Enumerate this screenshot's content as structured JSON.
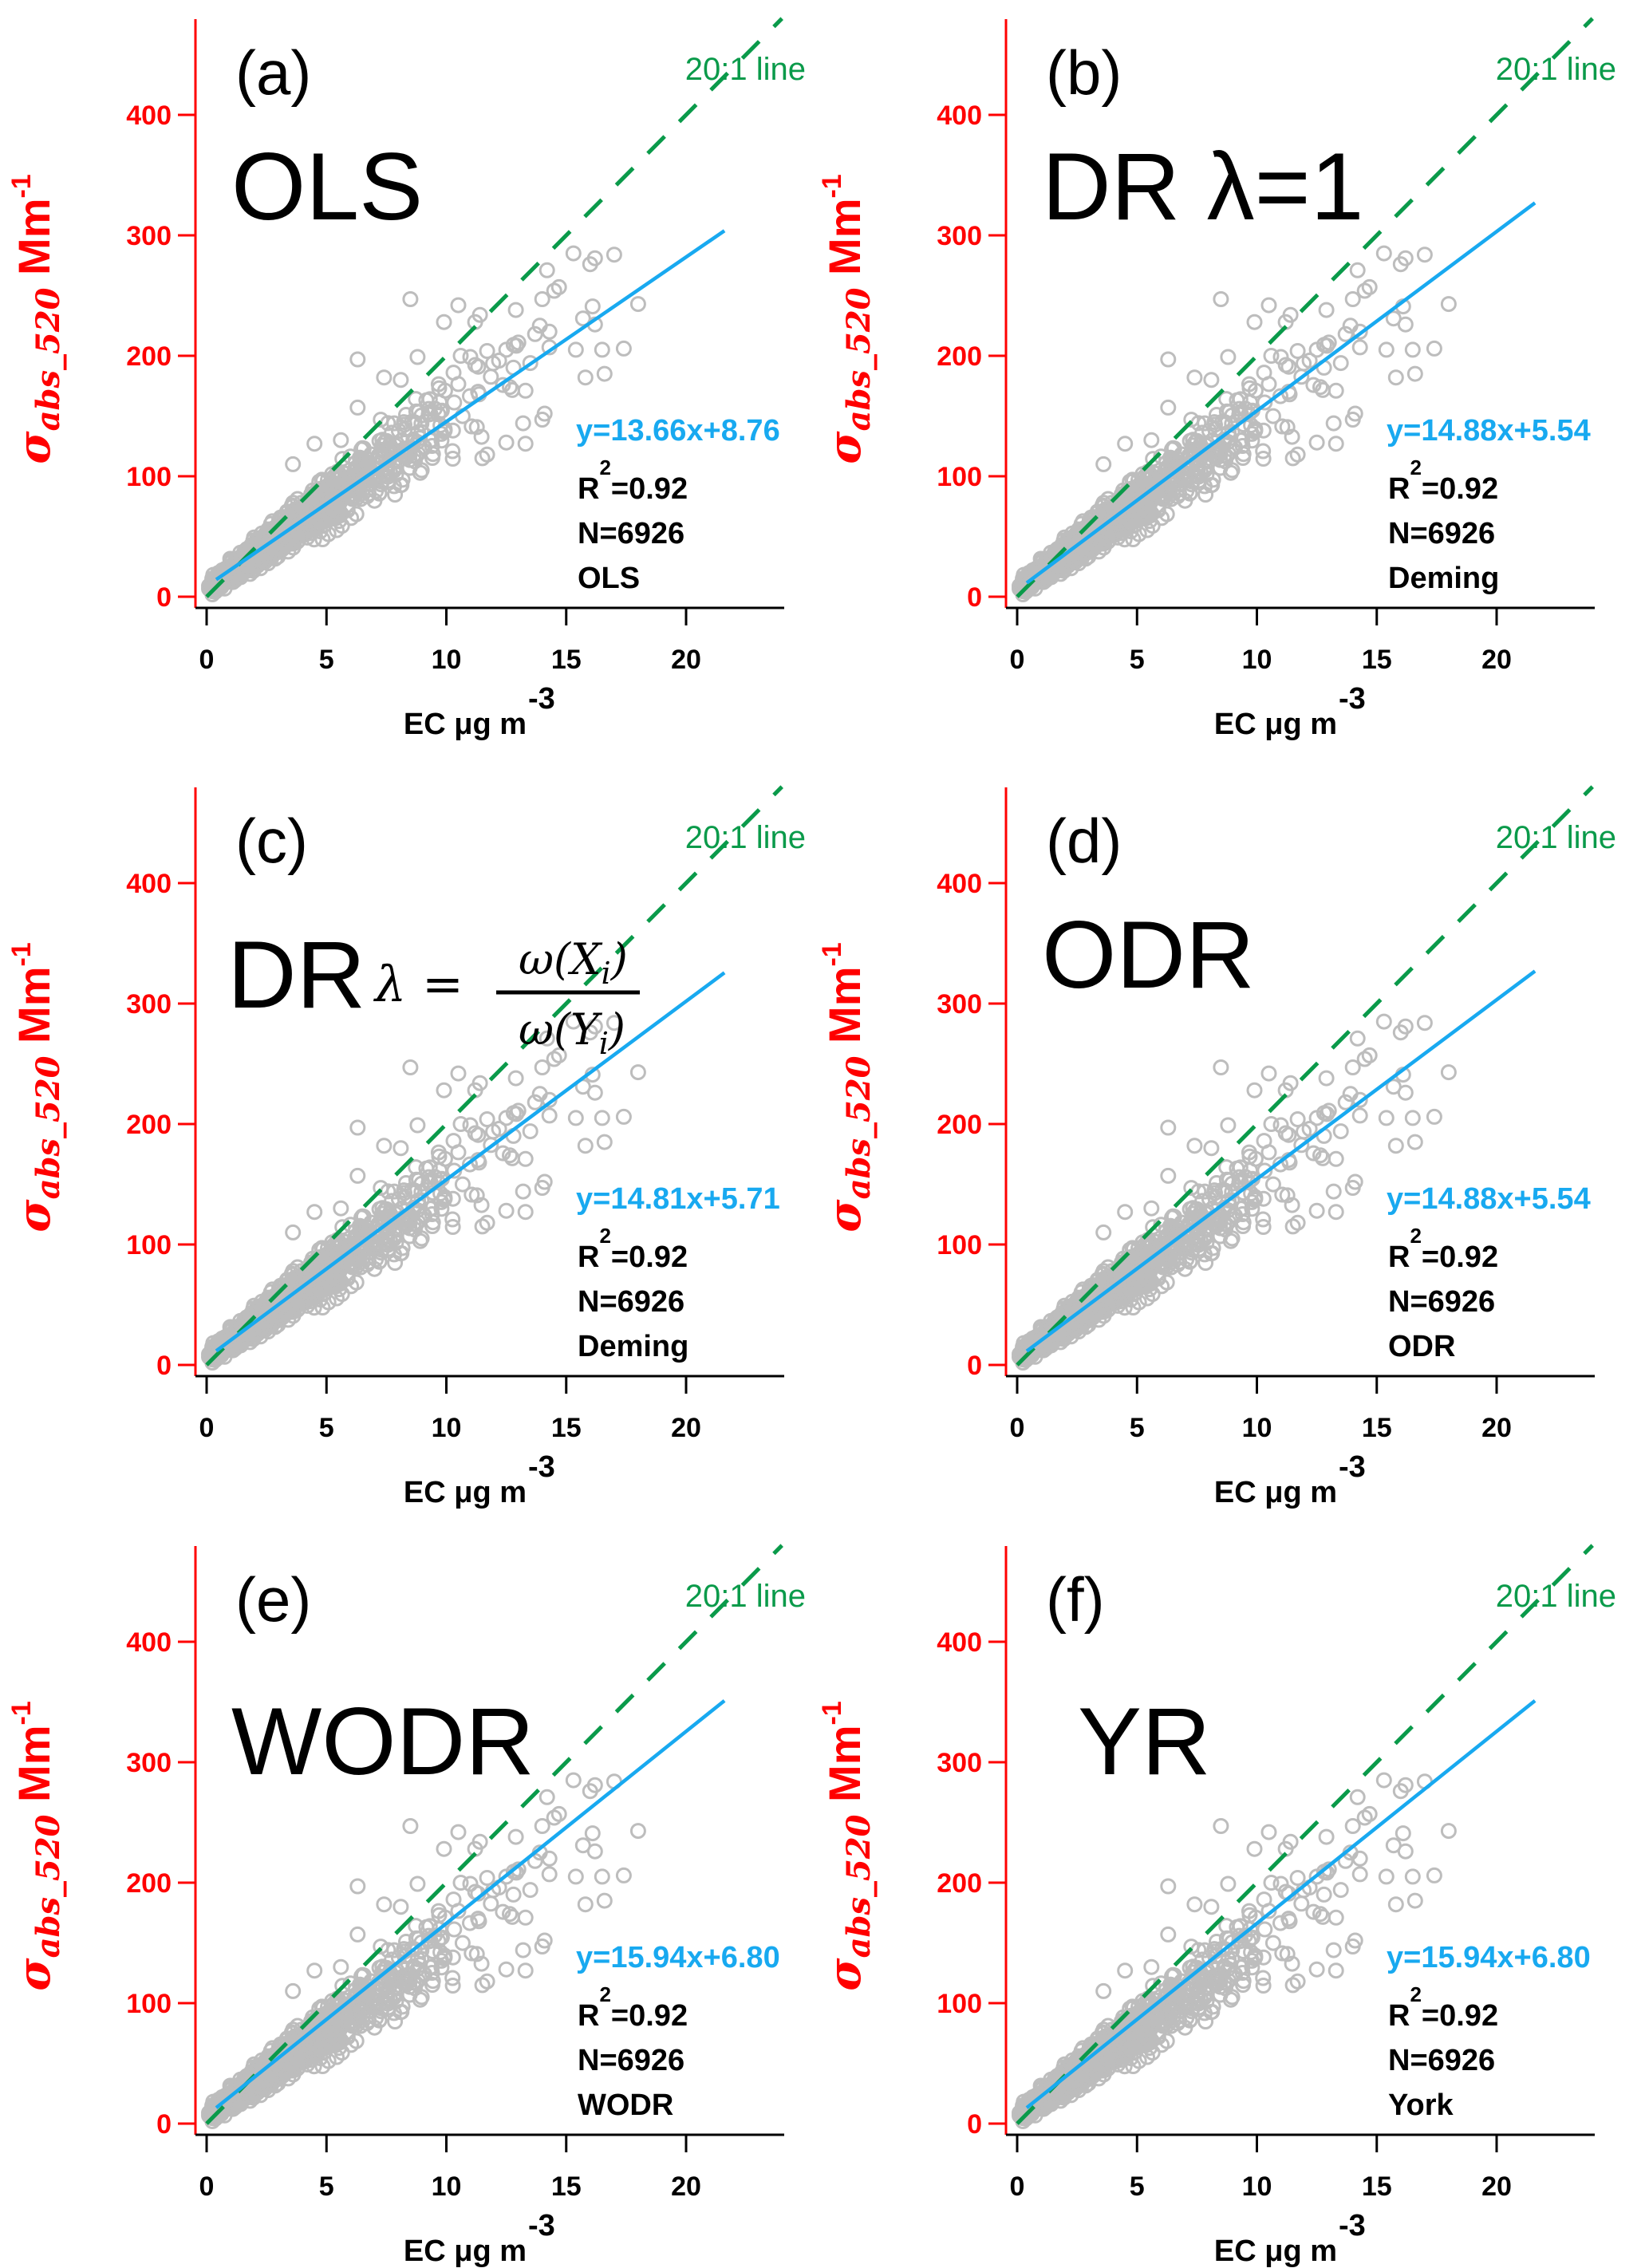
{
  "chart_data": {
    "type": "scatter",
    "layout": "3x2 grid of panels",
    "shared": {
      "xlabel": "EC  μg m",
      "xlabel_sup": "-3",
      "ylabel_symbol": "σ",
      "ylabel_sub": "abs_520",
      "ylabel_unit": " Mm",
      "ylabel_unit_sup": "-1",
      "xlim": [
        -0.5,
        24.1
      ],
      "ylim": [
        0,
        480
      ],
      "xticks": [
        0,
        5,
        10,
        15,
        20
      ],
      "yticks": [
        0,
        100,
        200,
        300,
        400
      ],
      "grid": false,
      "reference_line": {
        "label": "20:1 line",
        "slope": 20,
        "intercept": 0,
        "x_range": [
          0,
          24
        ]
      },
      "fit_x_range": [
        0.4,
        21.6
      ],
      "marker": "open circle",
      "colors": {
        "points": "#bdbdbd",
        "fit": "#18a9f0",
        "reference": "#0a9a4a",
        "y_axis": "#ff0000",
        "x_axis": "#000000"
      },
      "scatter_model": {
        "n_drawn": 1400,
        "x_scale": 2.4,
        "slope": 14.3,
        "intercept": 6,
        "noise_frac": 0.13
      },
      "outliers": [
        [
          8.5,
          247
        ],
        [
          10.5,
          242
        ],
        [
          11.4,
          234
        ],
        [
          12.9,
          238
        ],
        [
          14.2,
          271
        ],
        [
          15.3,
          285
        ],
        [
          16.0,
          276
        ],
        [
          16.2,
          281
        ],
        [
          17.0,
          284
        ],
        [
          16.1,
          241
        ],
        [
          18.0,
          243
        ],
        [
          15.7,
          231
        ],
        [
          16.2,
          226
        ],
        [
          14.7,
          257
        ],
        [
          14.5,
          254
        ],
        [
          14.0,
          247
        ],
        [
          9.9,
          228
        ],
        [
          11.2,
          228
        ],
        [
          6.3,
          197
        ],
        [
          8.8,
          199
        ],
        [
          7.4,
          182
        ],
        [
          8.1,
          180
        ],
        [
          15.4,
          205
        ],
        [
          16.5,
          205
        ],
        [
          17.4,
          206
        ],
        [
          15.8,
          182
        ],
        [
          16.6,
          185
        ],
        [
          12.5,
          205
        ],
        [
          13.5,
          194
        ],
        [
          11.7,
          204
        ],
        [
          13.3,
          171
        ],
        [
          14.1,
          152
        ],
        [
          14.0,
          147
        ],
        [
          13.2,
          144
        ],
        [
          13.3,
          127
        ],
        [
          11.5,
          115
        ],
        [
          11.7,
          118
        ],
        [
          12.5,
          128
        ],
        [
          13.9,
          225
        ],
        [
          14.3,
          220
        ],
        [
          13.7,
          218
        ],
        [
          14.3,
          207
        ],
        [
          13.0,
          211
        ],
        [
          12.2,
          196
        ],
        [
          11.0,
          199
        ],
        [
          10.6,
          200
        ],
        [
          10.3,
          186
        ],
        [
          9.7,
          173
        ],
        [
          4.5,
          127
        ],
        [
          3.6,
          110
        ],
        [
          6.3,
          157
        ],
        [
          5.6,
          130
        ]
      ]
    },
    "panels": [
      {
        "id": "a",
        "letter": "(a)",
        "method_title": "OLS",
        "fit": {
          "slope": 13.66,
          "intercept": 8.76
        },
        "equation": "y=13.66x+8.76",
        "r2_label": "R",
        "r2_sup": "2",
        "r2_value": "=0.92",
        "n": "N=6926",
        "method": "OLS"
      },
      {
        "id": "b",
        "letter": "(b)",
        "method_title": "DR λ=1",
        "fit": {
          "slope": 14.88,
          "intercept": 5.54
        },
        "equation": "y=14.88x+5.54",
        "r2_label": "R",
        "r2_sup": "2",
        "r2_value": "=0.92",
        "n": "N=6926",
        "method": "Deming"
      },
      {
        "id": "c",
        "letter": "(c)",
        "method_title": "DR",
        "method_formula": {
          "lhs": "λ =",
          "numerator": "ω(X",
          "numerator_sub": "i",
          "denominator": "ω(Y",
          "denominator_sub": "i",
          "close": ")"
        },
        "fit": {
          "slope": 14.81,
          "intercept": 5.71
        },
        "equation": "y=14.81x+5.71",
        "r2_label": "R",
        "r2_sup": "2",
        "r2_value": "=0.92",
        "n": "N=6926",
        "method": "Deming"
      },
      {
        "id": "d",
        "letter": "(d)",
        "method_title": "ODR",
        "fit": {
          "slope": 14.88,
          "intercept": 5.54
        },
        "equation": "y=14.88x+5.54",
        "r2_label": "R",
        "r2_sup": "2",
        "r2_value": "=0.92",
        "n": "N=6926",
        "method": "ODR"
      },
      {
        "id": "e",
        "letter": "(e)",
        "method_title": "WODR",
        "fit": {
          "slope": 15.94,
          "intercept": 6.8
        },
        "equation": "y=15.94x+6.80",
        "r2_label": "R",
        "r2_sup": "2",
        "r2_value": "=0.92",
        "n": "N=6926",
        "method": "WODR"
      },
      {
        "id": "f",
        "letter": "(f)",
        "method_title": "YR",
        "fit": {
          "slope": 15.94,
          "intercept": 6.8
        },
        "equation": "y=15.94x+6.80",
        "r2_label": "R",
        "r2_sup": "2",
        "r2_value": "=0.92",
        "n": "N=6926",
        "method": "York"
      }
    ]
  }
}
